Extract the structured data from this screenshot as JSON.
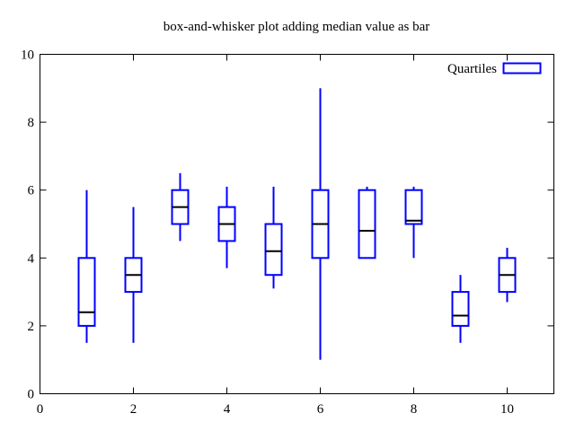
{
  "window": {
    "background": "#ffffff"
  },
  "colors": {
    "series": "#0000ff",
    "median": "#000000",
    "axis": "#000000",
    "text": "#000000",
    "background": "#ffffff"
  },
  "chart_data": {
    "type": "boxplot",
    "title": "box-and-whisker plot adding median value as bar",
    "xlabel": "",
    "ylabel": "",
    "xlim": [
      0,
      11
    ],
    "ylim": [
      0,
      10
    ],
    "xticks": [
      0,
      2,
      4,
      6,
      8,
      10
    ],
    "yticks": [
      0,
      2,
      4,
      6,
      8,
      10
    ],
    "grid": false,
    "legend": {
      "label": "Quartiles",
      "position": "top-right-inside"
    },
    "series": [
      {
        "name": "Quartiles",
        "style": "candlestick-box-and-whisker-with-median-bar",
        "color": "#0000ff",
        "median_color": "#000000",
        "boxes": [
          {
            "x": 1,
            "whisker_low": 1.5,
            "q1": 2.0,
            "median": 2.4,
            "q3": 4.0,
            "whisker_high": 6.0
          },
          {
            "x": 2,
            "whisker_low": 1.5,
            "q1": 3.0,
            "median": 3.5,
            "q3": 4.0,
            "whisker_high": 5.5
          },
          {
            "x": 3,
            "whisker_low": 4.5,
            "q1": 5.0,
            "median": 5.5,
            "q3": 6.0,
            "whisker_high": 6.5
          },
          {
            "x": 4,
            "whisker_low": 3.7,
            "q1": 4.5,
            "median": 5.0,
            "q3": 5.5,
            "whisker_high": 6.1
          },
          {
            "x": 5,
            "whisker_low": 3.1,
            "q1": 3.5,
            "median": 4.2,
            "q3": 5.0,
            "whisker_high": 6.1
          },
          {
            "x": 6,
            "whisker_low": 1.0,
            "q1": 4.0,
            "median": 5.0,
            "q3": 6.0,
            "whisker_high": 9.0
          },
          {
            "x": 7,
            "whisker_low": 4.0,
            "q1": 4.0,
            "median": 4.8,
            "q3": 6.0,
            "whisker_high": 6.1
          },
          {
            "x": 8,
            "whisker_low": 4.0,
            "q1": 5.0,
            "median": 5.1,
            "q3": 6.0,
            "whisker_high": 6.1
          },
          {
            "x": 9,
            "whisker_low": 1.5,
            "q1": 2.0,
            "median": 2.3,
            "q3": 3.0,
            "whisker_high": 3.5
          },
          {
            "x": 10,
            "whisker_low": 2.7,
            "q1": 3.0,
            "median": 3.5,
            "q3": 4.0,
            "whisker_high": 4.3
          }
        ]
      }
    ]
  }
}
